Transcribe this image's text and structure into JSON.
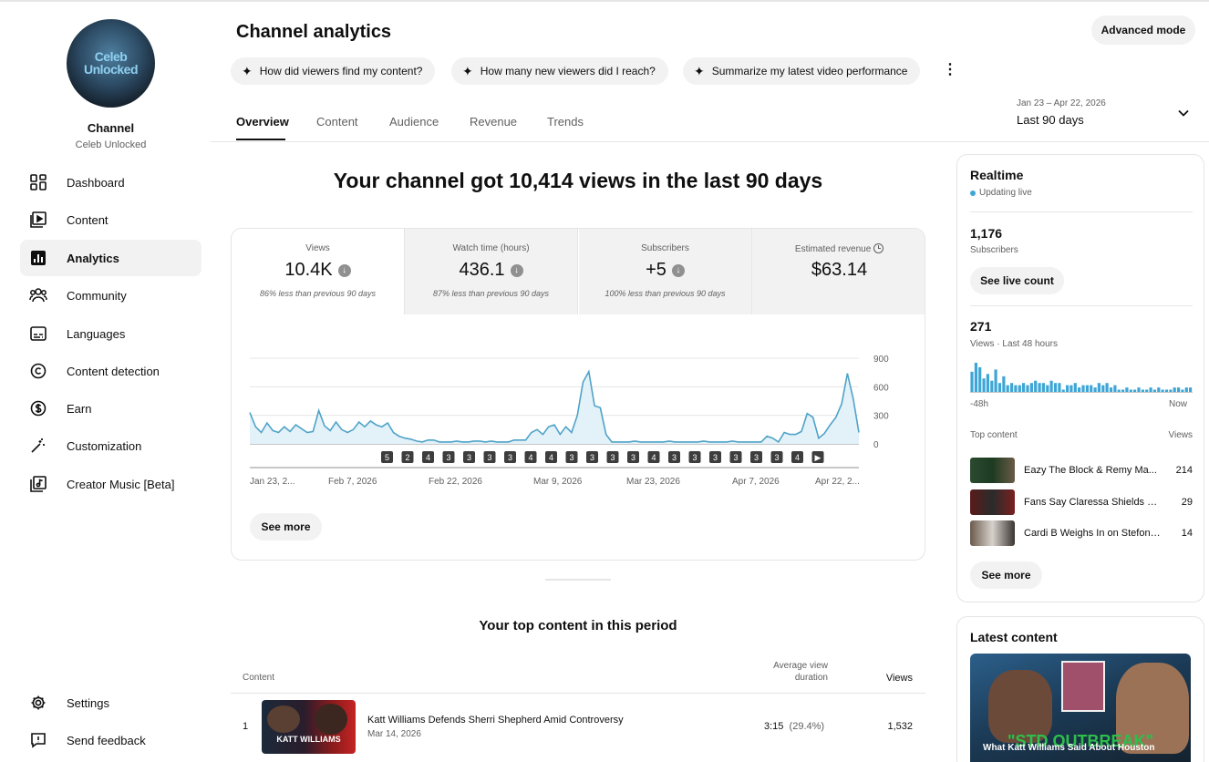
{
  "sidebar": {
    "avatar_text": [
      "Celeb",
      "Unlocked"
    ],
    "channel_label": "Channel",
    "channel_name": "Celeb Unlocked",
    "items": [
      {
        "label": "Dashboard",
        "icon": "dashboard-icon"
      },
      {
        "label": "Content",
        "icon": "content-icon"
      },
      {
        "label": "Analytics",
        "icon": "analytics-icon",
        "active": true
      },
      {
        "label": "Community",
        "icon": "community-icon"
      },
      {
        "label": "Languages",
        "icon": "subtitles-icon"
      },
      {
        "label": "Content detection",
        "icon": "copyright-icon"
      },
      {
        "label": "Earn",
        "icon": "dollar-icon"
      },
      {
        "label": "Customization",
        "icon": "magic-wand-icon"
      },
      {
        "label": "Creator Music [Beta]",
        "icon": "music-icon"
      }
    ],
    "footer": [
      {
        "label": "Settings",
        "icon": "gear-icon"
      },
      {
        "label": "Send feedback",
        "icon": "feedback-icon"
      }
    ]
  },
  "header": {
    "title": "Channel analytics",
    "advanced_mode": "Advanced mode",
    "chips": [
      "How did viewers find my content?",
      "How many new viewers did I reach?",
      "Summarize my latest video performance"
    ],
    "tabs": [
      "Overview",
      "Content",
      "Audience",
      "Revenue",
      "Trends"
    ],
    "active_tab": "Overview",
    "date_range": "Jan 23 – Apr 22, 2026",
    "date_range_label": "Last 90 days"
  },
  "overview": {
    "headline": "Your channel got 10,414 views in the last 90 days",
    "metrics": [
      {
        "label": "Views",
        "value": "10.4K",
        "trend": "down",
        "note": "86% less than previous 90 days"
      },
      {
        "label": "Watch time (hours)",
        "value": "436.1",
        "trend": "down",
        "note": "87% less than previous 90 days"
      },
      {
        "label": "Subscribers",
        "value": "+5",
        "trend": "down",
        "note": "100% less than previous 90 days"
      },
      {
        "label": "Estimated revenue",
        "value": "$63.14",
        "trend": "",
        "note": ""
      }
    ],
    "see_more": "See more"
  },
  "chart_data": {
    "type": "area",
    "y_ticks": [
      "900",
      "600",
      "300",
      "0"
    ],
    "ylim": [
      0,
      900
    ],
    "x_ticks": [
      "Jan 23, 2...",
      "Feb 7, 2026",
      "Feb 22, 2026",
      "Mar 9, 2026",
      "Mar 23, 2026",
      "Apr 7, 2026",
      "Apr 22, 2..."
    ],
    "color": "#4fa3c8",
    "values": [
      330,
      180,
      120,
      220,
      140,
      120,
      180,
      130,
      200,
      160,
      120,
      130,
      350,
      190,
      140,
      230,
      150,
      120,
      150,
      230,
      180,
      240,
      200,
      180,
      220,
      120,
      80,
      60,
      50,
      30,
      20,
      40,
      40,
      20,
      20,
      20,
      30,
      20,
      20,
      30,
      30,
      20,
      30,
      20,
      20,
      20,
      40,
      40,
      40,
      120,
      150,
      100,
      180,
      200,
      100,
      180,
      120,
      300,
      650,
      760,
      400,
      380,
      100,
      20,
      20,
      20,
      20,
      30,
      20,
      20,
      20,
      20,
      20,
      30,
      20,
      20,
      20,
      20,
      20,
      30,
      20,
      20,
      20,
      20,
      30,
      20,
      20,
      20,
      20,
      20,
      80,
      60,
      20,
      120,
      100,
      100,
      130,
      320,
      280,
      60,
      110,
      200,
      280,
      420,
      740,
      480,
      120
    ],
    "markers": [
      "5",
      "2",
      "4",
      "3",
      "3",
      "3",
      "3",
      "4",
      "4",
      "3",
      "3",
      "3",
      "3",
      "4",
      "3",
      "3",
      "3",
      "3",
      "3",
      "3",
      "4",
      "▶"
    ]
  },
  "top_content": {
    "title": "Your top content in this period",
    "columns": {
      "content": "Content",
      "avg": "Average view duration",
      "views": "Views"
    },
    "rows": [
      {
        "rank": "1",
        "title": "Katt Williams Defends Sherri Shepherd Amid Controversy",
        "date": "Mar 14, 2026",
        "avg": "3:15",
        "pct": "(29.4%)",
        "views": "1,532",
        "thumb_text": "KATT WILLIAMS"
      }
    ]
  },
  "realtime": {
    "title": "Realtime",
    "status": "Updating live",
    "subscribers_value": "1,176",
    "subscribers_label": "Subscribers",
    "live_count_button": "See live count",
    "views_value": "271",
    "views_label": "Views · Last 48 hours",
    "axis_start": "-48h",
    "axis_end": "Now",
    "top_content_label": "Top content",
    "views_col": "Views",
    "bars": [
      18,
      26,
      22,
      12,
      16,
      10,
      20,
      8,
      14,
      6,
      8,
      6,
      6,
      8,
      6,
      8,
      10,
      8,
      8,
      6,
      10,
      8,
      8,
      2,
      6,
      6,
      8,
      4,
      6,
      6,
      6,
      4,
      8,
      6,
      8,
      4,
      6,
      2,
      2,
      4,
      2,
      2,
      4,
      2,
      2,
      4,
      2,
      4,
      2,
      2,
      2,
      4,
      4,
      2,
      4,
      4
    ],
    "top_items": [
      {
        "title": "Eazy The Block & Remy Ma...",
        "views": "214"
      },
      {
        "title": "Fans Say Claressa Shields K...",
        "views": "29"
      },
      {
        "title": "Cardi B Weighs In on Stefon ...",
        "views": "14"
      }
    ],
    "see_more": "See more"
  },
  "latest": {
    "title": "Latest content",
    "thumb_headline": "\"STD OUTBREAK\"",
    "thumb_caption": "What Katt Williams Said About Houston"
  }
}
